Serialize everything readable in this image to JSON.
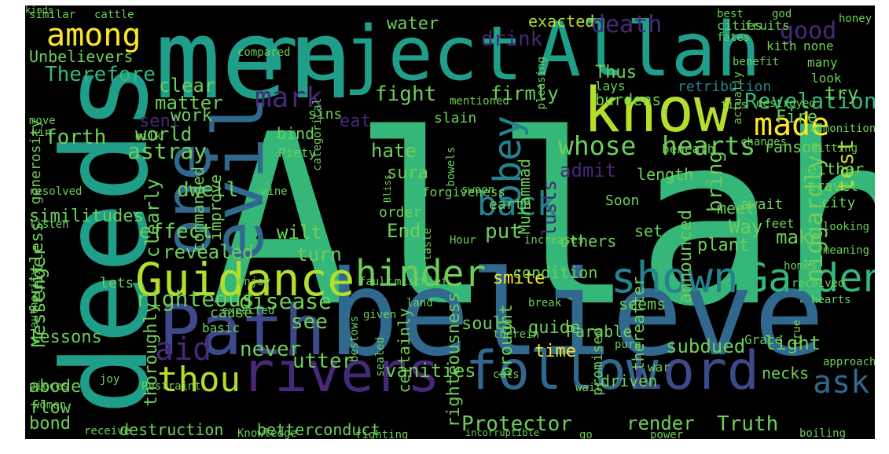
{
  "palette": {
    "background": "#000000",
    "colors": [
      "#fde725",
      "#b5de2b",
      "#6ece58",
      "#35b779",
      "#1f9e89",
      "#26828e",
      "#31688e",
      "#3e4989",
      "#482878",
      "#440154"
    ]
  },
  "words": [
    {
      "text": "Allah",
      "color": "#35b779"
    },
    {
      "text": "believe",
      "color": "#31688e"
    },
    {
      "text": "men",
      "color": "#1f9e89"
    },
    {
      "text": "deeds",
      "color": "#1f9e89"
    },
    {
      "text": "reject",
      "color": "#1f9e89"
    },
    {
      "text": "Allah",
      "color": "#1f9e89"
    },
    {
      "text": "know",
      "color": "#b5de2b"
    },
    {
      "text": "evil",
      "color": "#31688e"
    },
    {
      "text": "one",
      "color": "#31688e"
    },
    {
      "text": "Path",
      "color": "#3e4989"
    },
    {
      "text": "rivers",
      "color": "#482878"
    },
    {
      "text": "follow",
      "color": "#31688e"
    },
    {
      "text": "Lord",
      "color": "#3e4989"
    },
    {
      "text": "Guidance",
      "color": "#b5de2b"
    },
    {
      "text": "shown",
      "color": "#26828e"
    },
    {
      "text": "Garden",
      "color": "#35b779"
    },
    {
      "text": "hinder",
      "color": "#6ece58"
    },
    {
      "text": "back",
      "color": "#26828e"
    },
    {
      "text": "obey",
      "color": "#26828e"
    },
    {
      "text": "mark",
      "color": "#482878"
    },
    {
      "text": "among",
      "color": "#fde725"
    },
    {
      "text": "made",
      "color": "#fde725"
    },
    {
      "text": "whose",
      "color": "#6ece58"
    },
    {
      "text": "hearts",
      "color": "#6ece58"
    },
    {
      "text": "thou",
      "color": "#b5de2b"
    },
    {
      "text": "aid",
      "color": "#482878"
    },
    {
      "text": "ask",
      "color": "#31688e"
    },
    {
      "text": "Revelation",
      "color": "#35b779"
    },
    {
      "text": "good",
      "color": "#482878"
    },
    {
      "text": "water",
      "color": "#6ece58"
    },
    {
      "text": "drink",
      "color": "#482878"
    },
    {
      "text": "exacted",
      "color": "#b5de2b"
    },
    {
      "text": "death",
      "color": "#482878"
    },
    {
      "text": "Therefore",
      "color": "#35b779"
    },
    {
      "text": "Unbelievers",
      "color": "#6ece58"
    },
    {
      "text": "similar",
      "color": "#6ece58"
    },
    {
      "text": "cattle",
      "color": "#6ece58"
    },
    {
      "text": "clear",
      "color": "#6ece58"
    },
    {
      "text": "matter",
      "color": "#6ece58"
    },
    {
      "text": "fight",
      "color": "#6ece58"
    },
    {
      "text": "firmly",
      "color": "#6ece58"
    },
    {
      "text": "Thus",
      "color": "#6ece58"
    },
    {
      "text": "burdens",
      "color": "#6ece58"
    },
    {
      "text": "lays",
      "color": "#6ece58"
    },
    {
      "text": "retribution",
      "color": "#26828e"
    },
    {
      "text": "sent",
      "color": "#482878"
    },
    {
      "text": "eat",
      "color": "#482878"
    },
    {
      "text": "forth",
      "color": "#6ece58"
    },
    {
      "text": "world",
      "color": "#6ece58"
    },
    {
      "text": "astray",
      "color": "#6ece58"
    },
    {
      "text": "bind",
      "color": "#6ece58"
    },
    {
      "text": "ransom",
      "color": "#6ece58"
    },
    {
      "text": "try",
      "color": "#6ece58"
    },
    {
      "text": "Fire",
      "color": "#6ece58"
    },
    {
      "text": "hate",
      "color": "#6ece58"
    },
    {
      "text": "admit",
      "color": "#482878"
    },
    {
      "text": "sura",
      "color": "#6ece58"
    },
    {
      "text": "dwell",
      "color": "#6ece58"
    },
    {
      "text": "bring",
      "color": "#6ece58"
    },
    {
      "text": "test",
      "color": "#b5de2b"
    },
    {
      "text": "niggardly",
      "color": "#6ece58"
    },
    {
      "text": "lusts",
      "color": "#482878"
    },
    {
      "text": "effect",
      "color": "#6ece58"
    },
    {
      "text": "End",
      "color": "#6ece58"
    },
    {
      "text": "put",
      "color": "#6ece58"
    },
    {
      "text": "Way",
      "color": "#6ece58"
    },
    {
      "text": "make",
      "color": "#6ece58"
    },
    {
      "text": "revealed",
      "color": "#6ece58"
    },
    {
      "text": "wilt",
      "color": "#6ece58"
    },
    {
      "text": "turn",
      "color": "#6ece58"
    },
    {
      "text": "others",
      "color": "#6ece58"
    },
    {
      "text": "meet",
      "color": "#6ece58"
    },
    {
      "text": "feet",
      "color": "#6ece58"
    },
    {
      "text": "travel",
      "color": "#6ece58"
    },
    {
      "text": "either",
      "color": "#6ece58"
    },
    {
      "text": "city",
      "color": "#6ece58"
    },
    {
      "text": "righteous",
      "color": "#6ece58"
    },
    {
      "text": "disease",
      "color": "#6ece58"
    },
    {
      "text": "smite",
      "color": "#fde725"
    },
    {
      "text": "souls",
      "color": "#6ece58"
    },
    {
      "text": "see",
      "color": "#6ece58"
    },
    {
      "text": "Messenger",
      "color": "#6ece58"
    },
    {
      "text": "lessons",
      "color": "#6ece58"
    },
    {
      "text": "never",
      "color": "#6ece58"
    },
    {
      "text": "utter",
      "color": "#6ece58"
    },
    {
      "text": "vanities",
      "color": "#6ece58"
    },
    {
      "text": "time",
      "color": "#fde725"
    },
    {
      "text": "subdued",
      "color": "#6ece58"
    },
    {
      "text": "light",
      "color": "#6ece58"
    },
    {
      "text": "necks",
      "color": "#6ece58"
    },
    {
      "text": "Truth",
      "color": "#6ece58"
    },
    {
      "text": "render",
      "color": "#6ece58"
    },
    {
      "text": "Protector",
      "color": "#6ece58"
    },
    {
      "text": "bond",
      "color": "#6ece58"
    },
    {
      "text": "destruction",
      "color": "#6ece58"
    },
    {
      "text": "betterconduct",
      "color": "#6ece58"
    },
    {
      "text": "war",
      "color": "#6ece58"
    },
    {
      "text": "driven",
      "color": "#6ece58"
    },
    {
      "text": "Grace",
      "color": "#6ece58"
    },
    {
      "text": "guide",
      "color": "#6ece58"
    },
    {
      "text": "promised",
      "color": "#6ece58"
    },
    {
      "text": "thereafter",
      "color": "#6ece58"
    },
    {
      "text": "plant",
      "color": "#6ece58"
    },
    {
      "text": "announced",
      "color": "#6ece58"
    },
    {
      "text": "set",
      "color": "#6ece58"
    },
    {
      "text": "length",
      "color": "#6ece58"
    },
    {
      "text": "Soon",
      "color": "#6ece58"
    },
    {
      "text": "earth",
      "color": "#6ece58"
    },
    {
      "text": "order",
      "color": "#6ece58"
    },
    {
      "text": "Muhammad",
      "color": "#6ece58"
    },
    {
      "text": "clearly",
      "color": "#6ece58"
    },
    {
      "text": "commanded",
      "color": "#6ece58"
    },
    {
      "text": "improve",
      "color": "#6ece58"
    },
    {
      "text": "similitudes",
      "color": "#6ece58"
    },
    {
      "text": "fruitless",
      "color": "#6ece58"
    },
    {
      "text": "abode",
      "color": "#6ece58"
    },
    {
      "text": "flow",
      "color": "#6ece58"
    },
    {
      "text": "thoroughly",
      "color": "#6ece58"
    },
    {
      "text": "certainly",
      "color": "#6ece58"
    },
    {
      "text": "brought",
      "color": "#6ece58"
    },
    {
      "text": "righteousness",
      "color": "#6ece58"
    },
    {
      "text": "condition",
      "color": "#6ece58"
    },
    {
      "text": "cause",
      "color": "#6ece58"
    },
    {
      "text": "Parable",
      "color": "#6ece58"
    },
    {
      "text": "work",
      "color": "#6ece58"
    },
    {
      "text": "sins",
      "color": "#6ece58"
    },
    {
      "text": "slain",
      "color": "#6ece58"
    },
    {
      "text": "generosity",
      "color": "#6ece58"
    },
    {
      "text": "lets",
      "color": "#6ece58"
    },
    {
      "text": "basic",
      "color": "#6ece58"
    },
    {
      "text": "seems",
      "color": "#6ece58"
    },
    {
      "text": "await",
      "color": "#6ece58"
    },
    {
      "text": "beneath",
      "color": "#6ece58"
    },
    {
      "text": "fruits",
      "color": "#6ece58"
    },
    {
      "text": "cities",
      "color": "#6ece58"
    },
    {
      "text": "kith",
      "color": "#6ece58"
    },
    {
      "text": "none",
      "color": "#6ece58"
    },
    {
      "text": "honey",
      "color": "#6ece58"
    },
    {
      "text": "best",
      "color": "#6ece58"
    },
    {
      "text": "god",
      "color": "#6ece58"
    },
    {
      "text": "fates",
      "color": "#6ece58"
    },
    {
      "text": "many",
      "color": "#6ece58"
    },
    {
      "text": "look",
      "color": "#6ece58"
    },
    {
      "text": "benefit",
      "color": "#6ece58"
    },
    {
      "text": "compared",
      "color": "#6ece58"
    },
    {
      "text": "actually",
      "color": "#6ece58"
    },
    {
      "text": "categorical",
      "color": "#6ece58"
    },
    {
      "text": "pleasing",
      "color": "#6ece58"
    },
    {
      "text": "destroyed",
      "color": "#6ece58"
    },
    {
      "text": "mentioned",
      "color": "#6ece58"
    },
    {
      "text": "move",
      "color": "#6ece58"
    },
    {
      "text": "kin",
      "color": "#6ece58"
    },
    {
      "text": "milk",
      "color": "#6ece58"
    },
    {
      "text": "Piety",
      "color": "#6ece58"
    },
    {
      "text": "Bliss",
      "color": "#6ece58"
    },
    {
      "text": "bowels",
      "color": "#6ece58"
    },
    {
      "text": "forgiveness",
      "color": "#6ece58"
    },
    {
      "text": "swoon",
      "color": "#6ece58"
    },
    {
      "text": "wine",
      "color": "#6ece58"
    },
    {
      "text": "ties",
      "color": "#6ece58"
    },
    {
      "text": "admonition",
      "color": "#6ece58"
    },
    {
      "text": "fitting",
      "color": "#6ece58"
    },
    {
      "text": "changes",
      "color": "#6ece58"
    },
    {
      "text": "resolved",
      "color": "#6ece58"
    },
    {
      "text": "listen",
      "color": "#6ece58"
    },
    {
      "text": "taste",
      "color": "#6ece58"
    },
    {
      "text": "Hour",
      "color": "#6ece58"
    },
    {
      "text": "increases",
      "color": "#6ece58"
    },
    {
      "text": "looking",
      "color": "#6ece58"
    },
    {
      "text": "meaning",
      "color": "#6ece58"
    },
    {
      "text": "homes",
      "color": "#6ece58"
    },
    {
      "text": "enjoy",
      "color": "#6ece58"
    },
    {
      "text": "fault",
      "color": "#6ece58"
    },
    {
      "text": "mischief",
      "color": "#6ece58"
    },
    {
      "text": "received",
      "color": "#6ece58"
    },
    {
      "text": "hearts",
      "color": "#6ece58"
    },
    {
      "text": "land",
      "color": "#6ece58"
    },
    {
      "text": "expected",
      "color": "#6ece58"
    },
    {
      "text": "break",
      "color": "#6ece58"
    },
    {
      "text": "given",
      "color": "#6ece58"
    },
    {
      "text": "true",
      "color": "#6ece58"
    },
    {
      "text": "authority",
      "color": "#6ece58"
    },
    {
      "text": "bestows",
      "color": "#6ece58"
    },
    {
      "text": "sealed",
      "color": "#6ece58"
    },
    {
      "text": "therein",
      "color": "#6ece58"
    },
    {
      "text": "pure",
      "color": "#6ece58"
    },
    {
      "text": "approach",
      "color": "#6ece58"
    },
    {
      "text": "pieces",
      "color": "#6ece58"
    },
    {
      "text": "women",
      "color": "#6ece58"
    },
    {
      "text": "joy",
      "color": "#6ece58"
    },
    {
      "text": "Restraint",
      "color": "#6ece58"
    },
    {
      "text": "cuts",
      "color": "#6ece58"
    },
    {
      "text": "wait",
      "color": "#6ece58"
    },
    {
      "text": "receive",
      "color": "#6ece58"
    },
    {
      "text": "Knowledge",
      "color": "#6ece58"
    },
    {
      "text": "fighting",
      "color": "#6ece58"
    },
    {
      "text": "incorruptible",
      "color": "#6ece58"
    },
    {
      "text": "go",
      "color": "#6ece58"
    },
    {
      "text": "power",
      "color": "#6ece58"
    },
    {
      "text": "boiling",
      "color": "#6ece58"
    },
    {
      "text": "kinds",
      "color": "#6ece58"
    }
  ]
}
